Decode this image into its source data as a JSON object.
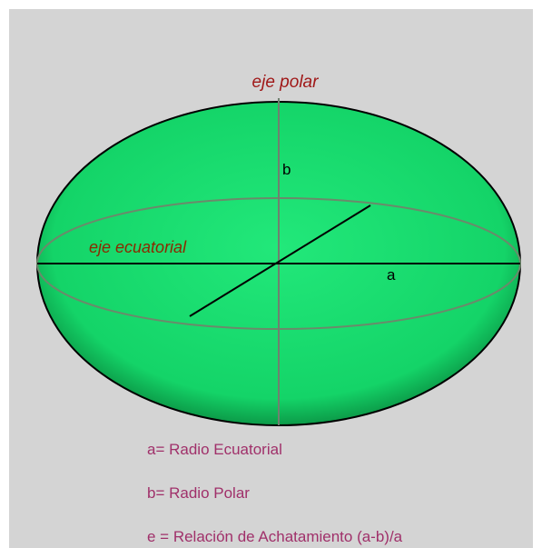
{
  "labels": {
    "polar_axis": "eje polar",
    "equatorial_axis": "eje ecuatorial",
    "b": "b",
    "a": "a"
  },
  "legend": [
    "a= Radio Ecuatorial",
    "b= Radio Polar",
    "e = Relación de Achatamiento (a-b)/a"
  ]
}
